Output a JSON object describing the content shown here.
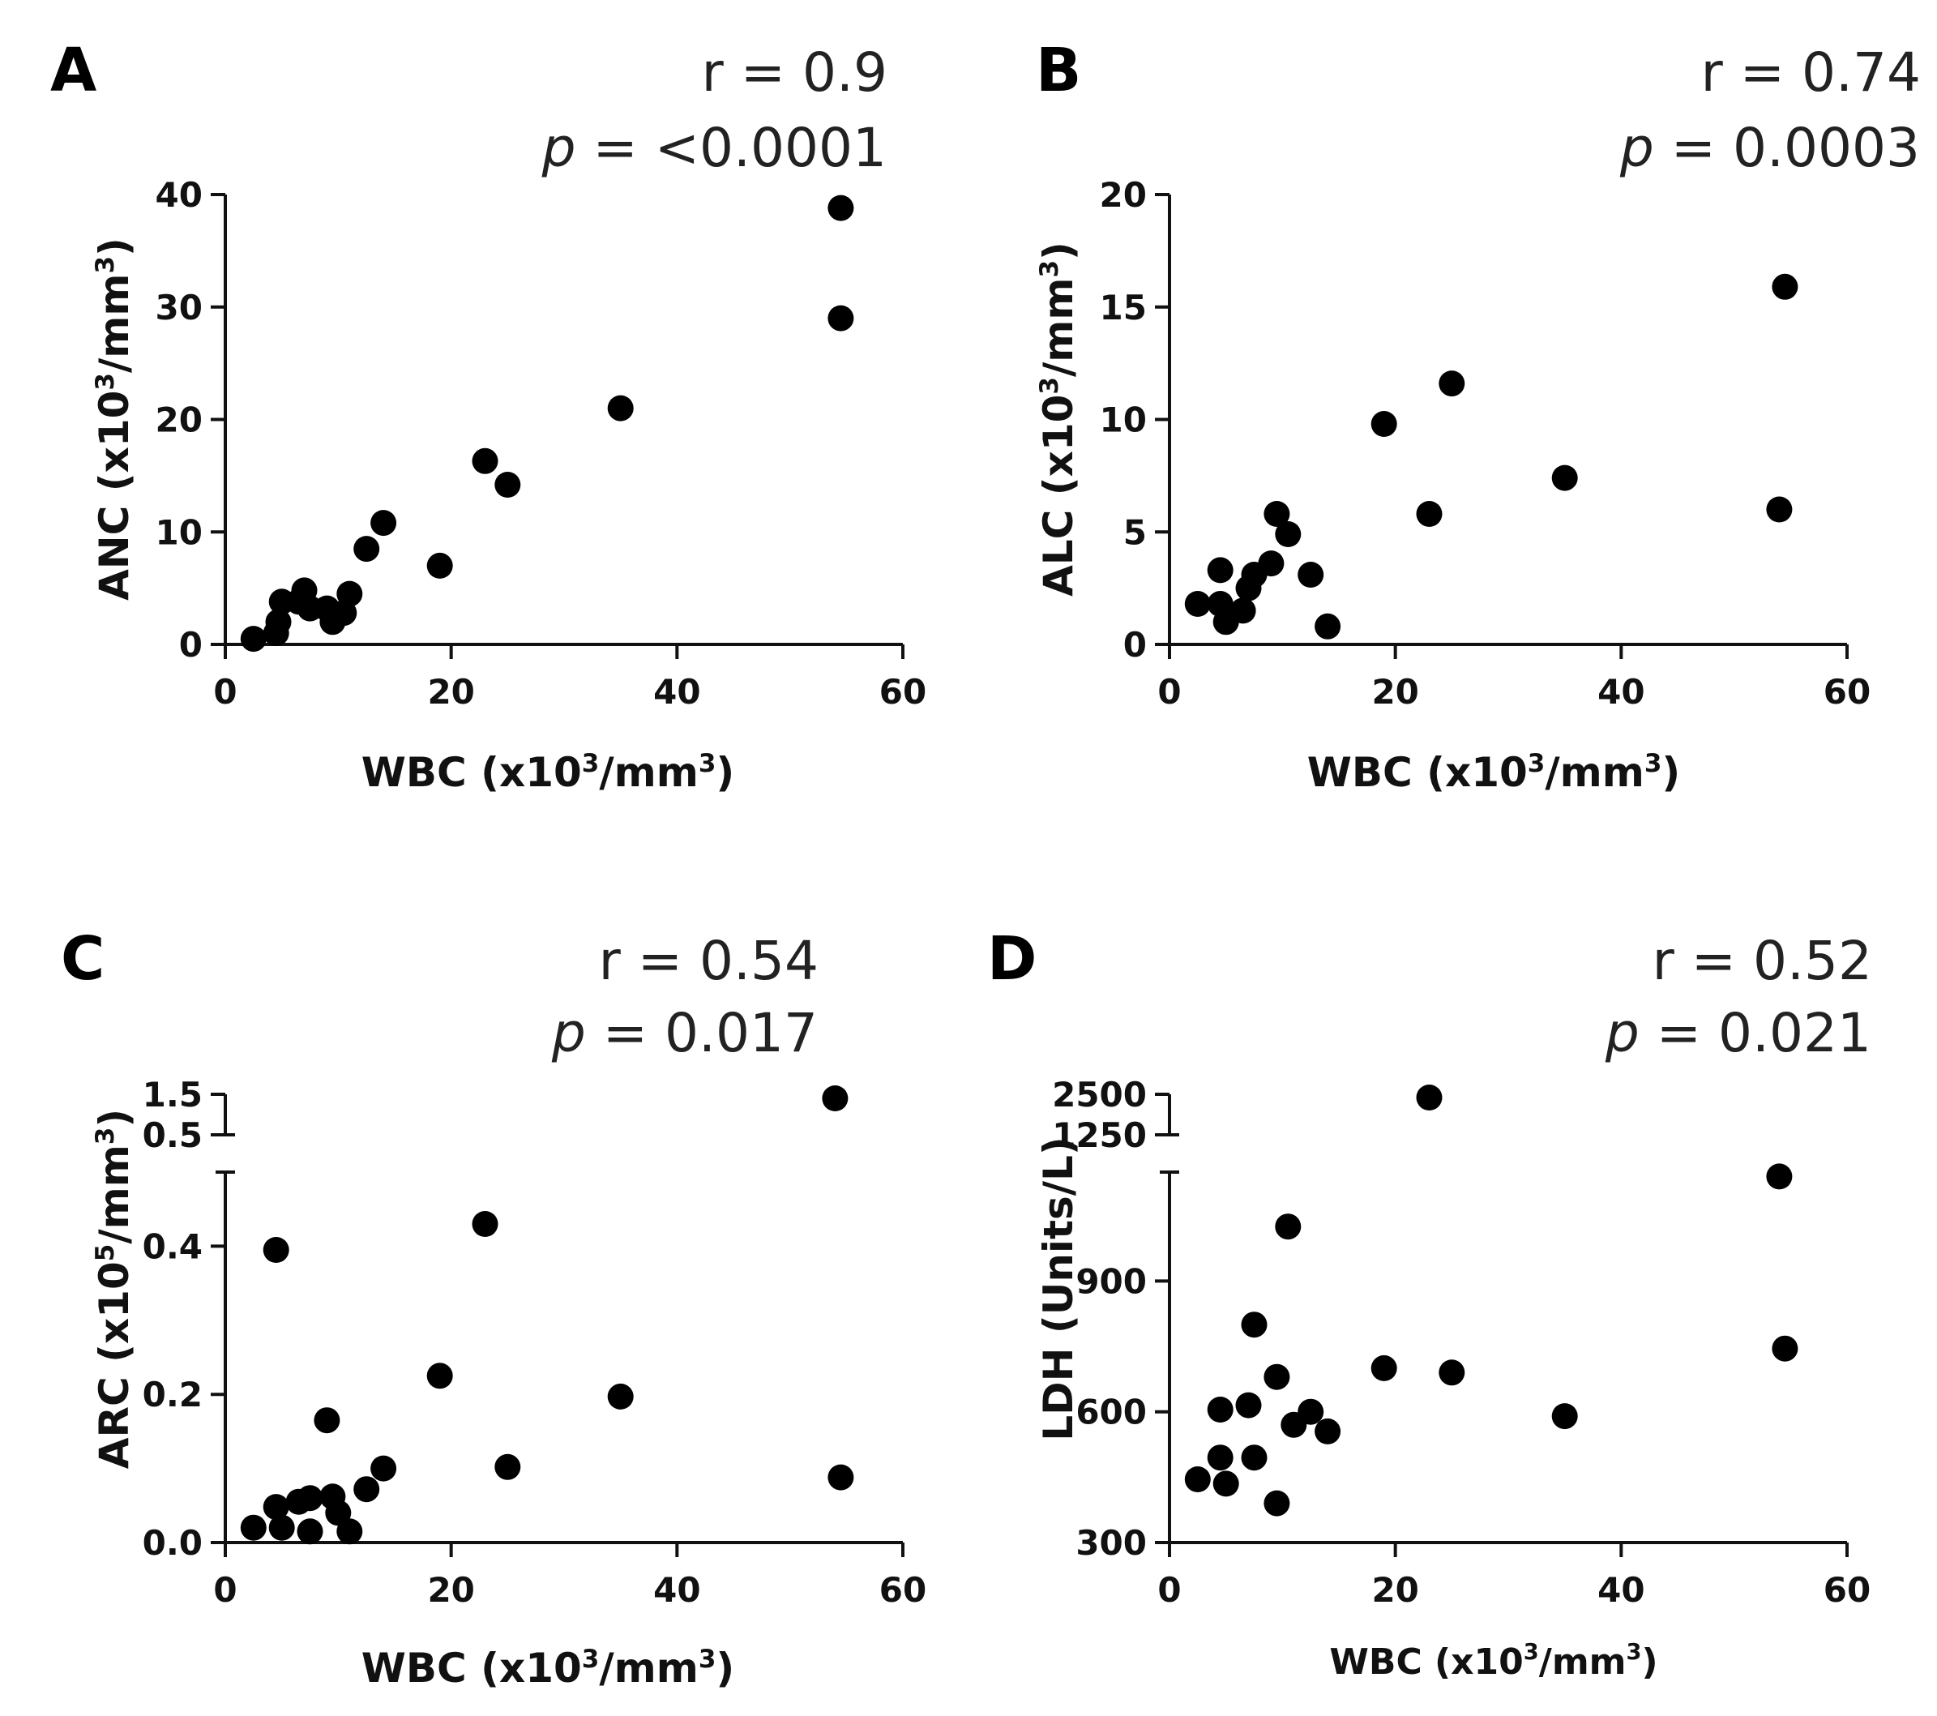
{
  "chart_data": [
    {
      "type": "scatter",
      "panel": "A",
      "r_label": "r =",
      "r_value": "0.9",
      "p_label": "p",
      "p_eq": "=",
      "p_value": "<0.0001",
      "xlabel": "WBC (x10",
      "xlabel_sup": "3",
      "xlabel_end": "/mm",
      "xlabel_sup2": "3",
      "xlabel_close": ")",
      "ylabel": "ANC (x10",
      "ylabel_sup": "3",
      "ylabel_end": "/mm",
      "ylabel_sup2": "3",
      "ylabel_close": ")",
      "xlim": [
        0,
        60
      ],
      "ylim": [
        0,
        40
      ],
      "xticks": [
        0,
        20,
        40,
        60
      ],
      "yticks": [
        0,
        10,
        20,
        30,
        40
      ],
      "x": [
        2.5,
        4.5,
        4.7,
        5.0,
        6.5,
        7.0,
        7.5,
        9.0,
        9.5,
        10.5,
        11.0,
        12.5,
        14.0,
        19.0,
        23.0,
        25.0,
        35.0,
        54.5,
        54.5
      ],
      "y": [
        0.5,
        1.0,
        2.0,
        3.8,
        3.8,
        4.8,
        3.2,
        3.2,
        2.0,
        2.8,
        4.5,
        8.5,
        10.8,
        7.0,
        16.3,
        14.2,
        21.0,
        38.8,
        29.0
      ]
    },
    {
      "type": "scatter",
      "panel": "B",
      "r_label": "r =",
      "r_value": "0.74",
      "p_label": "p",
      "p_eq": "=",
      "p_value": "0.0003",
      "xlabel": "WBC (x10",
      "xlabel_sup": "3",
      "xlabel_end": "/mm",
      "xlabel_sup2": "3",
      "xlabel_close": ")",
      "ylabel": "ALC (x10",
      "ylabel_sup": "3",
      "ylabel_end": "/mm",
      "ylabel_sup2": "3",
      "ylabel_close": ")",
      "xlim": [
        0,
        60
      ],
      "ylim": [
        0,
        20
      ],
      "xticks": [
        0,
        20,
        40,
        60
      ],
      "yticks": [
        0,
        5,
        10,
        15,
        20
      ],
      "x": [
        2.5,
        4.5,
        4.5,
        5.0,
        6.5,
        7.0,
        7.5,
        9.0,
        9.5,
        10.5,
        12.5,
        14.0,
        19.0,
        23.0,
        25.0,
        35.0,
        54.0,
        54.5
      ],
      "y": [
        1.8,
        3.3,
        1.8,
        1.0,
        1.5,
        2.5,
        3.1,
        3.6,
        5.8,
        4.9,
        3.1,
        0.8,
        9.8,
        5.8,
        11.6,
        7.4,
        6.0,
        15.9
      ]
    },
    {
      "type": "scatter",
      "panel": "C",
      "r_label": "r =",
      "r_value": "0.54",
      "p_label": "p",
      "p_eq": "=",
      "p_value": "0.017",
      "xlabel": "WBC (x10",
      "xlabel_sup": "3",
      "xlabel_end": "/mm",
      "xlabel_sup2": "3",
      "xlabel_close": ")",
      "ylabel": "ARC (x10",
      "ylabel_sup": "5",
      "ylabel_end": "/mm",
      "ylabel_sup2": "3",
      "ylabel_close": ")",
      "xlim": [
        0,
        60
      ],
      "ylim_lower": [
        0,
        0.5
      ],
      "ylim_upper": [
        0.5,
        1.5
      ],
      "xticks": [
        0,
        20,
        40,
        60
      ],
      "yticks_lower": [
        "0.0",
        "0.2",
        "0.4"
      ],
      "yticks_lower_values": [
        0,
        0.2,
        0.4
      ],
      "yticks_upper": [
        "0.5",
        "1.5"
      ],
      "yticks_upper_values": [
        0.5,
        1.5
      ],
      "x": [
        2.5,
        4.5,
        4.5,
        5.0,
        6.5,
        7.5,
        7.5,
        9.0,
        9.5,
        10.0,
        11.0,
        12.5,
        14.0,
        19.0,
        23.0,
        25.0,
        35.0,
        54.0,
        54.5
      ],
      "y": [
        0.02,
        0.395,
        0.048,
        0.02,
        0.055,
        0.06,
        0.015,
        0.165,
        0.062,
        0.04,
        0.015,
        0.072,
        0.1,
        0.225,
        0.43,
        0.102,
        0.197,
        1.4,
        0.088
      ]
    },
    {
      "type": "scatter",
      "panel": "D",
      "r_label": "r =",
      "r_value": "0.52",
      "p_label": "p",
      "p_eq": "=",
      "p_value": "0.021",
      "xlabel": "WBC (x10",
      "xlabel_sup": "3",
      "xlabel_end": "/mm",
      "xlabel_sup2": "3",
      "xlabel_close": ")",
      "ylabel": "LDH (Units/L)",
      "xlim": [
        0,
        60
      ],
      "ylim_lower": [
        300,
        1150
      ],
      "ylim_upper": [
        1250,
        2500
      ],
      "xticks": [
        0,
        20,
        40,
        60
      ],
      "yticks_lower": [
        "300",
        "600",
        "900"
      ],
      "yticks_lower_values": [
        300,
        600,
        900
      ],
      "yticks_upper": [
        "1250",
        "2500"
      ],
      "yticks_upper_values": [
        1250,
        2500
      ],
      "x": [
        2.5,
        4.5,
        4.5,
        5.0,
        7.0,
        7.5,
        7.5,
        9.5,
        9.5,
        10.5,
        11.0,
        12.5,
        14.0,
        19.0,
        23.0,
        25.0,
        35.0,
        54.0,
        54.5
      ],
      "y": [
        445,
        605,
        495,
        435,
        615,
        495,
        800,
        680,
        390,
        1025,
        570,
        600,
        555,
        700,
        2400,
        690,
        590,
        1140,
        745
      ]
    }
  ]
}
